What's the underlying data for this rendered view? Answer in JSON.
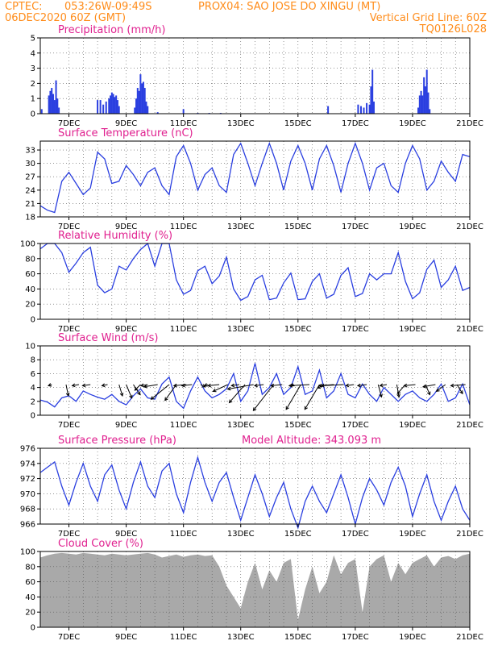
{
  "header": {
    "line1_left": "CPTEC:",
    "line1_mid": "053:26W-09:49S",
    "line1_right": "PROX04: SAO JOSE DO XINGU (MT)",
    "line2_left": "06DEC2020 60Z (GMT)",
    "line2_right": "Vertical Grid Line: 60Z",
    "line3_right": "TQ0126L028"
  },
  "colors": {
    "header": "#ff8c1a",
    "titles": "#e0208f",
    "series": "#2a3fe0",
    "cloud": "#a9a9a9",
    "wind_arrow": "#000000"
  },
  "x_axis": {
    "labels": [
      "7DEC",
      "9DEC",
      "11DEC",
      "13DEC",
      "15DEC",
      "17DEC",
      "19DEC",
      "21DEC"
    ]
  },
  "chart_data": [
    {
      "type": "bar",
      "title": "Precipitation (mm/h)",
      "ylim": [
        0,
        5
      ],
      "yticks": [
        "0",
        "1",
        "2",
        "3",
        "4",
        "5"
      ],
      "xlim_days": [
        6,
        21
      ],
      "x_day": [
        6.05,
        6.3,
        6.35,
        6.4,
        6.45,
        6.5,
        6.55,
        6.6,
        6.65,
        8.0,
        8.1,
        8.2,
        8.3,
        8.4,
        8.45,
        8.5,
        8.55,
        8.6,
        8.65,
        8.7,
        8.75,
        9.3,
        9.35,
        9.4,
        9.45,
        9.5,
        9.55,
        9.6,
        9.65,
        9.7,
        9.75,
        10.1,
        11.0,
        11.5,
        11.9,
        12.3,
        16.05,
        17.1,
        17.2,
        17.3,
        17.4,
        17.5,
        17.55,
        17.6,
        17.65,
        19.2,
        19.25,
        19.3,
        19.35,
        19.4,
        19.45,
        19.5,
        19.55,
        19.6
      ],
      "values": [
        0.3,
        1.2,
        1.5,
        1.7,
        1.3,
        0.9,
        2.2,
        1.0,
        0.4,
        0.9,
        0.9,
        0.6,
        0.8,
        1.0,
        1.2,
        1.4,
        1.3,
        1.1,
        1.2,
        0.9,
        0.5,
        0.4,
        1.0,
        1.7,
        1.5,
        2.6,
        2.0,
        2.1,
        1.7,
        0.8,
        0.5,
        0.1,
        0.3,
        0.05,
        0.05,
        0.05,
        0.5,
        0.6,
        0.5,
        0.4,
        0.7,
        0.6,
        1.8,
        2.9,
        0.8,
        0.4,
        1.2,
        1.5,
        1.2,
        2.4,
        1.8,
        2.9,
        1.4,
        0.3
      ]
    },
    {
      "type": "line",
      "title": "Surface Temperature (nC)",
      "ylim": [
        18,
        35
      ],
      "yticks": [
        "18",
        "21",
        "24",
        "27",
        "30",
        "33"
      ],
      "x_day": [
        6.0,
        6.25,
        6.5,
        6.75,
        7.0,
        7.25,
        7.5,
        7.75,
        8.0,
        8.25,
        8.5,
        8.75,
        9.0,
        9.25,
        9.5,
        9.75,
        10.0,
        10.25,
        10.5,
        10.75,
        11.0,
        11.25,
        11.5,
        11.75,
        12.0,
        12.25,
        12.5,
        12.75,
        13.0,
        13.25,
        13.5,
        13.75,
        14.0,
        14.25,
        14.5,
        14.75,
        15.0,
        15.25,
        15.5,
        15.75,
        16.0,
        16.25,
        16.5,
        16.75,
        17.0,
        17.25,
        17.5,
        17.75,
        18.0,
        18.25,
        18.5,
        18.75,
        19.0,
        19.25,
        19.5,
        19.75,
        20.0,
        20.25,
        20.5,
        20.75,
        21.0
      ],
      "values": [
        20.5,
        19.5,
        19.0,
        26.0,
        28.0,
        25.5,
        23.0,
        24.5,
        32.5,
        31.0,
        25.5,
        26.0,
        29.5,
        27.5,
        25.0,
        28.0,
        29.0,
        25.0,
        23.0,
        31.5,
        34.0,
        30.0,
        24.0,
        27.5,
        29.0,
        25.0,
        23.5,
        32.0,
        34.5,
        30.0,
        25.0,
        30.0,
        34.5,
        30.0,
        24.0,
        30.5,
        34.0,
        30.0,
        24.0,
        31.0,
        34.0,
        29.5,
        23.5,
        30.0,
        34.5,
        30.0,
        24.0,
        29.0,
        30.0,
        25.0,
        23.5,
        30.0,
        34.0,
        31.0,
        24.0,
        26.0,
        30.5,
        28.0,
        26.0,
        32.0,
        31.5
      ]
    },
    {
      "type": "line",
      "title": "Relative Humidity (%)",
      "ylim": [
        0,
        100
      ],
      "yticks": [
        "0",
        "20",
        "40",
        "60",
        "80",
        "100"
      ],
      "x_day": [
        6.0,
        6.25,
        6.5,
        6.75,
        7.0,
        7.25,
        7.5,
        7.75,
        8.0,
        8.25,
        8.5,
        8.75,
        9.0,
        9.25,
        9.5,
        9.75,
        10.0,
        10.25,
        10.5,
        10.75,
        11.0,
        11.25,
        11.5,
        11.75,
        12.0,
        12.25,
        12.5,
        12.75,
        13.0,
        13.25,
        13.5,
        13.75,
        14.0,
        14.25,
        14.5,
        14.75,
        15.0,
        15.25,
        15.5,
        15.75,
        16.0,
        16.25,
        16.5,
        16.75,
        17.0,
        17.25,
        17.5,
        17.75,
        18.0,
        18.25,
        18.5,
        18.75,
        19.0,
        19.25,
        19.5,
        19.75,
        20.0,
        20.25,
        20.5,
        20.75,
        21.0
      ],
      "values": [
        93,
        100,
        100,
        88,
        62,
        74,
        88,
        95,
        45,
        35,
        40,
        70,
        65,
        80,
        92,
        100,
        70,
        100,
        100,
        52,
        33,
        38,
        64,
        70,
        47,
        57,
        82,
        40,
        25,
        30,
        52,
        58,
        26,
        28,
        48,
        61,
        26,
        27,
        50,
        60,
        28,
        33,
        58,
        68,
        30,
        34,
        60,
        52,
        60,
        60,
        88,
        50,
        27,
        35,
        66,
        78,
        42,
        52,
        70,
        38,
        42
      ]
    },
    {
      "type": "line",
      "title": "Surface Wind (m/s)",
      "ylim": [
        0,
        10
      ],
      "yticks": [
        "0",
        "2",
        "4",
        "6",
        "8",
        "10"
      ],
      "x_day": [
        6.0,
        6.25,
        6.5,
        6.75,
        7.0,
        7.25,
        7.5,
        7.75,
        8.0,
        8.25,
        8.5,
        8.75,
        9.0,
        9.25,
        9.5,
        9.75,
        10.0,
        10.25,
        10.5,
        10.75,
        11.0,
        11.25,
        11.5,
        11.75,
        12.0,
        12.25,
        12.5,
        12.75,
        13.0,
        13.25,
        13.5,
        13.75,
        14.0,
        14.25,
        14.5,
        14.75,
        15.0,
        15.25,
        15.5,
        15.75,
        16.0,
        16.25,
        16.5,
        16.75,
        17.0,
        17.25,
        17.5,
        17.75,
        18.0,
        18.25,
        18.5,
        18.75,
        19.0,
        19.25,
        19.5,
        19.75,
        20.0,
        20.25,
        20.5,
        20.75,
        21.0
      ],
      "values": [
        2.2,
        1.9,
        1.2,
        2.5,
        2.8,
        2.0,
        3.5,
        3.0,
        2.6,
        2.3,
        3.0,
        2.0,
        1.5,
        2.8,
        3.8,
        2.5,
        2.3,
        4.5,
        5.5,
        2.0,
        1.0,
        3.5,
        5.5,
        3.5,
        2.5,
        3.0,
        3.8,
        6.0,
        2.0,
        3.5,
        7.5,
        3.0,
        4.0,
        6.0,
        3.0,
        4.0,
        7.0,
        3.0,
        3.5,
        6.5,
        2.5,
        3.5,
        6.0,
        3.0,
        2.5,
        4.5,
        3.0,
        2.0,
        4.0,
        3.0,
        2.0,
        3.0,
        3.5,
        2.5,
        2.0,
        3.0,
        4.5,
        2.0,
        2.5,
        4.5,
        1.5
      ],
      "arrows": {
        "x_day": [
          6.4,
          6.9,
          7.35,
          7.75,
          8.35,
          8.75,
          9.0,
          9.25,
          9.5,
          9.75,
          10.1,
          10.5,
          10.75,
          11.1,
          11.3,
          11.6,
          11.85,
          12.25,
          12.55,
          12.95,
          13.15,
          13.45,
          13.8,
          14.15,
          14.45,
          14.75,
          15.1,
          15.4,
          15.75,
          16.0,
          16.25,
          16.6,
          16.95,
          17.4,
          17.8,
          18.1,
          18.45,
          18.75,
          19.1,
          19.45,
          19.8,
          20.15,
          20.55,
          20.85
        ],
        "u": [
          -0.3,
          0.2,
          -0.6,
          -0.7,
          -0.5,
          0.3,
          0.5,
          0.6,
          -0.5,
          -0.6,
          -1.2,
          -1.6,
          -1.0,
          -1.1,
          -0.9,
          0.4,
          -0.3,
          -1.0,
          -1.3,
          -0.7,
          -1.4,
          -2.3,
          -0.8,
          -1.8,
          -1.0,
          0.3,
          -1.3,
          -1.8,
          -1.3,
          -0.8,
          -1.3,
          -2.0,
          -0.7,
          -0.8,
          0.3,
          -0.6,
          0.2,
          -0.7,
          -1.0,
          0.4,
          -1.1,
          -0.8,
          0.5,
          -1.3
        ],
        "v": [
          -0.1,
          -1.0,
          -0.1,
          -0.1,
          -0.1,
          -1.0,
          -1.2,
          -0.9,
          -0.5,
          -0.1,
          -0.2,
          -1.3,
          -1.4,
          -0.1,
          -0.1,
          -0.2,
          -0.1,
          -0.1,
          -0.6,
          -0.1,
          -1.6,
          -0.4,
          -0.1,
          -2.3,
          -0.1,
          -0.1,
          -2.2,
          -0.1,
          -2.2,
          -0.3,
          -0.1,
          -0.1,
          -0.1,
          -0.1,
          -1.1,
          -0.1,
          -1.1,
          -0.8,
          -0.1,
          -0.9,
          -0.2,
          -0.6,
          -0.8,
          -0.1
        ]
      }
    },
    {
      "type": "line",
      "title": "Surface Pressure (hPa)",
      "annotation": "Model Altitude: 343.093 m",
      "ylim": [
        966,
        976
      ],
      "yticks": [
        "966",
        "968",
        "970",
        "972",
        "974",
        "976"
      ],
      "x_day": [
        6.0,
        6.25,
        6.5,
        6.75,
        7.0,
        7.25,
        7.5,
        7.75,
        8.0,
        8.25,
        8.5,
        8.75,
        9.0,
        9.25,
        9.5,
        9.75,
        10.0,
        10.25,
        10.5,
        10.75,
        11.0,
        11.25,
        11.5,
        11.75,
        12.0,
        12.25,
        12.5,
        12.75,
        13.0,
        13.25,
        13.5,
        13.75,
        14.0,
        14.25,
        14.5,
        14.75,
        15.0,
        15.25,
        15.5,
        15.75,
        16.0,
        16.25,
        16.5,
        16.75,
        17.0,
        17.25,
        17.5,
        17.75,
        18.0,
        18.25,
        18.5,
        18.75,
        19.0,
        19.25,
        19.5,
        19.75,
        20.0,
        20.25,
        20.5,
        20.75,
        21.0
      ],
      "values": [
        972.8,
        973.5,
        974.2,
        971.0,
        968.5,
        971.5,
        974.0,
        971.0,
        969.0,
        972.5,
        973.8,
        970.5,
        968.0,
        971.5,
        974.2,
        971.0,
        969.5,
        973.0,
        974.0,
        970.0,
        967.5,
        971.5,
        974.8,
        971.5,
        969.0,
        971.5,
        972.8,
        969.5,
        966.5,
        969.5,
        972.5,
        970.0,
        967.0,
        969.5,
        971.5,
        968.0,
        965.5,
        969.0,
        971.0,
        969.0,
        967.5,
        970.0,
        972.5,
        969.5,
        966.0,
        969.5,
        972.0,
        970.5,
        968.5,
        971.5,
        973.5,
        971.0,
        967.0,
        970.0,
        972.5,
        969.0,
        966.5,
        969.0,
        971.0,
        968.0,
        966.5
      ]
    },
    {
      "type": "area",
      "title": "Cloud Cover (%)",
      "ylim": [
        0,
        100
      ],
      "yticks": [
        "0",
        "20",
        "40",
        "60",
        "80",
        "100"
      ],
      "x_day": [
        6.0,
        6.25,
        6.5,
        6.75,
        7.0,
        7.25,
        7.5,
        7.75,
        8.0,
        8.25,
        8.5,
        8.75,
        9.0,
        9.25,
        9.5,
        9.75,
        10.0,
        10.25,
        10.5,
        10.75,
        11.0,
        11.25,
        11.5,
        11.75,
        12.0,
        12.25,
        12.5,
        12.75,
        13.0,
        13.25,
        13.5,
        13.75,
        14.0,
        14.25,
        14.5,
        14.75,
        15.0,
        15.25,
        15.5,
        15.75,
        16.0,
        16.25,
        16.5,
        16.75,
        17.0,
        17.25,
        17.5,
        17.75,
        18.0,
        18.25,
        18.5,
        18.75,
        19.0,
        19.25,
        19.5,
        19.75,
        20.0,
        20.25,
        20.5,
        20.75,
        21.0
      ],
      "values": [
        92,
        95,
        97,
        98,
        97,
        96,
        98,
        97,
        96,
        95,
        97,
        96,
        95,
        96,
        97,
        98,
        96,
        92,
        94,
        96,
        93,
        95,
        96,
        94,
        95,
        80,
        55,
        40,
        25,
        60,
        85,
        50,
        75,
        60,
        85,
        90,
        10,
        50,
        80,
        45,
        60,
        95,
        70,
        85,
        90,
        20,
        80,
        90,
        95,
        60,
        85,
        70,
        85,
        90,
        95,
        80,
        92,
        94,
        90,
        95,
        97
      ]
    }
  ]
}
